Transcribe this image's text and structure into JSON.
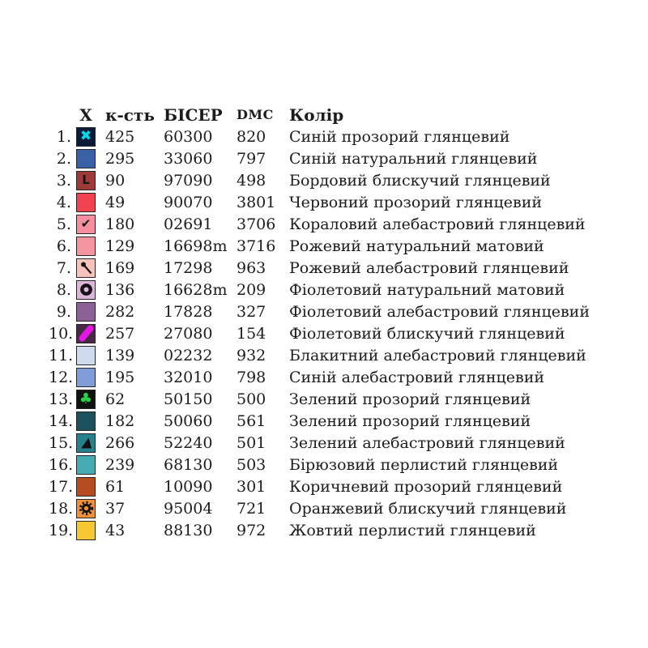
{
  "page": {
    "background": "#ffffff",
    "text_color": "#1c1c1c"
  },
  "table": {
    "headers": {
      "symbol": "X",
      "count": "к-сть",
      "beads": "БІСЕР",
      "dmc": "DMC",
      "color": "Колір"
    },
    "rows": [
      {
        "num": "1.",
        "count": "425",
        "beads": "60300",
        "dmc": "820",
        "color_name": "Синій прозорий глянцевий",
        "swatch": {
          "bg": "#0a1c3a",
          "symbol": "x-cross",
          "symbol_color": "#00dbe8"
        }
      },
      {
        "num": "2.",
        "count": "295",
        "beads": "33060",
        "dmc": "797",
        "color_name": "Синій натуральний глянцевий",
        "swatch": {
          "bg": "#3a60a8",
          "symbol": "plain",
          "symbol_color": ""
        }
      },
      {
        "num": "3.",
        "count": "90",
        "beads": "97090",
        "dmc": "498",
        "color_name": "Бордовий блискучий глянцевий",
        "swatch": {
          "bg": "#9e3a3a",
          "symbol": "letter-L",
          "symbol_color": "#141414"
        }
      },
      {
        "num": "4.",
        "count": "49",
        "beads": "90070",
        "dmc": "3801",
        "color_name": "Червоний прозорий  глянцевий",
        "swatch": {
          "bg": "#f0424f",
          "symbol": "plain",
          "symbol_color": ""
        }
      },
      {
        "num": "5.",
        "count": "180",
        "beads": "02691",
        "dmc": "3706",
        "color_name": "Кораловий алебастровий  глянцевий",
        "swatch": {
          "bg": "#f58fa0",
          "symbol": "check",
          "symbol_color": "#141414"
        }
      },
      {
        "num": "6.",
        "count": "129",
        "beads": "16698m",
        "dmc": "3716",
        "color_name": "Рожевий натуральний матовий",
        "swatch": {
          "bg": "#f595a0",
          "symbol": "plain",
          "symbol_color": ""
        }
      },
      {
        "num": "7.",
        "count": "169",
        "beads": "17298",
        "dmc": "963",
        "color_name": "Рожевий алебастровий  глянцевий",
        "swatch": {
          "bg": "#f6c4bd",
          "symbol": "pin",
          "symbol_color": "#141414"
        }
      },
      {
        "num": "8.",
        "count": "136",
        "beads": "16628m",
        "dmc": "209",
        "color_name": "Фіолетовий натуральний матовий",
        "swatch": {
          "bg": "#dcb5d8",
          "symbol": "ring",
          "symbol_color": "#141414"
        }
      },
      {
        "num": "9.",
        "count": "282",
        "beads": "17828",
        "dmc": "327",
        "color_name": "Фіолетовий алебастровий глянцевий",
        "swatch": {
          "bg": "#8c6196",
          "symbol": "plain",
          "symbol_color": ""
        }
      },
      {
        "num": "10.",
        "count": "257",
        "beads": "27080",
        "dmc": "154",
        "color_name": "Фіолетовий блискучий  глянцевий",
        "swatch": {
          "bg": "#472a46",
          "symbol": "stripe",
          "symbol_color": "#e318e3"
        }
      },
      {
        "num": "11.",
        "count": "139",
        "beads": "02232",
        "dmc": "932",
        "color_name": "Блакитний алебастровий  глянцевий",
        "swatch": {
          "bg": "#cfdaec",
          "symbol": "plain",
          "symbol_color": ""
        }
      },
      {
        "num": "12.",
        "count": "195",
        "beads": "32010",
        "dmc": "798",
        "color_name": "Синій алебастровий  глянцевий",
        "swatch": {
          "bg": "#7f9ed8",
          "symbol": "plain",
          "symbol_color": ""
        }
      },
      {
        "num": "13.",
        "count": "62",
        "beads": "50150",
        "dmc": "500",
        "color_name": "Зелений прозорий  глянцевий",
        "swatch": {
          "bg": "#121212",
          "symbol": "clover",
          "symbol_color": "#2bd043"
        }
      },
      {
        "num": "14.",
        "count": "182",
        "beads": "50060",
        "dmc": "561",
        "color_name": "Зелений прозорий  глянцевий",
        "swatch": {
          "bg": "#1b505c",
          "symbol": "plain",
          "symbol_color": ""
        }
      },
      {
        "num": "15.",
        "count": "266",
        "beads": "52240",
        "dmc": "501",
        "color_name": "Зелений алебастровий глянцевий",
        "swatch": {
          "bg": "#26818e",
          "symbol": "triangle",
          "symbol_color": "#101010"
        }
      },
      {
        "num": "16.",
        "count": "239",
        "beads": "68130",
        "dmc": "503",
        "color_name": "Бірюзовий перлистий глянцевий",
        "swatch": {
          "bg": "#47abb4",
          "symbol": "plain",
          "symbol_color": ""
        }
      },
      {
        "num": "17.",
        "count": "61",
        "beads": "10090",
        "dmc": "301",
        "color_name": "Коричневий прозорий глянцевий",
        "swatch": {
          "bg": "#b44b21",
          "symbol": "plain",
          "symbol_color": ""
        }
      },
      {
        "num": "18.",
        "count": "37",
        "beads": "95004",
        "dmc": "721",
        "color_name": "Оранжевий блискучий глянцевий",
        "swatch": {
          "bg": "#f09138",
          "symbol": "gear",
          "symbol_color": "#141414"
        }
      },
      {
        "num": "19.",
        "count": "43",
        "beads": "88130",
        "dmc": "972",
        "color_name": "Жовтий перлистий глянцевий",
        "swatch": {
          "bg": "#f6c832",
          "symbol": "plain",
          "symbol_color": ""
        }
      }
    ]
  }
}
